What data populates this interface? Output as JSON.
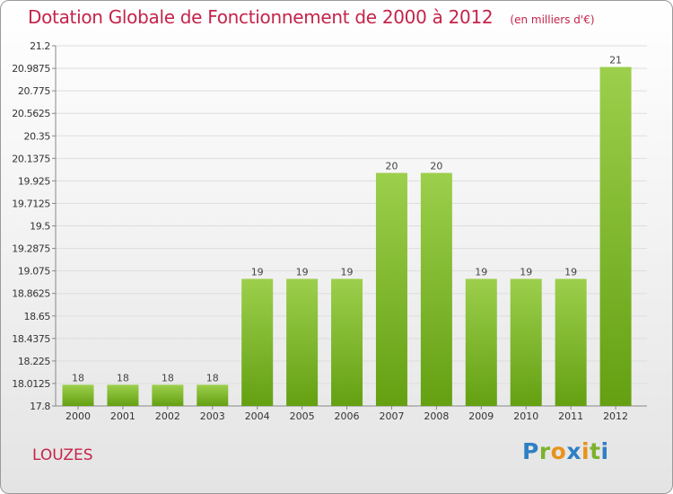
{
  "title": "Dotation Globale de Fonctionnement de 2000 à 2012",
  "unit": "(en milliers d'€)",
  "town": "LOUZES",
  "logo": {
    "text": "Proxiti",
    "letters": [
      "P",
      "r",
      "o",
      "x",
      "i",
      "t",
      "i"
    ]
  },
  "colors": {
    "bar_top": "#9ccf4c",
    "bar_bottom": "#64a012",
    "title": "#c4244a",
    "grid": "#dddddd"
  },
  "chart_data": {
    "type": "bar",
    "title": "Dotation Globale de Fonctionnement de 2000 à 2012",
    "ylabel": "(en milliers d'€)",
    "xlabel": "",
    "categories": [
      "2000",
      "2001",
      "2002",
      "2003",
      "2004",
      "2005",
      "2006",
      "2007",
      "2008",
      "2009",
      "2010",
      "2011",
      "2012"
    ],
    "values": [
      18,
      18,
      18,
      18,
      19,
      19,
      19,
      20,
      20,
      19,
      19,
      19,
      21
    ],
    "plotted_values": [
      18,
      18,
      18,
      18,
      19,
      19,
      19,
      20,
      20,
      19,
      19,
      19,
      21
    ],
    "data_labels": [
      "18",
      "18",
      "18",
      "18",
      "19",
      "19",
      "19",
      "20",
      "20",
      "19",
      "19",
      "19",
      "21"
    ],
    "ylim": [
      17.8,
      21.2
    ],
    "yticks": [
      17.8,
      18.0125,
      18.225,
      18.4375,
      18.65,
      18.8625,
      19.075,
      19.2875,
      19.5,
      19.7125,
      19.925,
      20.1375,
      20.35,
      20.5625,
      20.775,
      20.9875,
      21.2
    ],
    "ytick_labels": [
      "17.8",
      "18.0125",
      "18.225",
      "18.4375",
      "18.65",
      "18.8625",
      "19.075",
      "19.2875",
      "19.5",
      "19.7125",
      "19.925",
      "20.1375",
      "20.35",
      "20.5625",
      "20.775",
      "20.9875",
      "21.2"
    ],
    "grid": true,
    "legend": "none"
  }
}
